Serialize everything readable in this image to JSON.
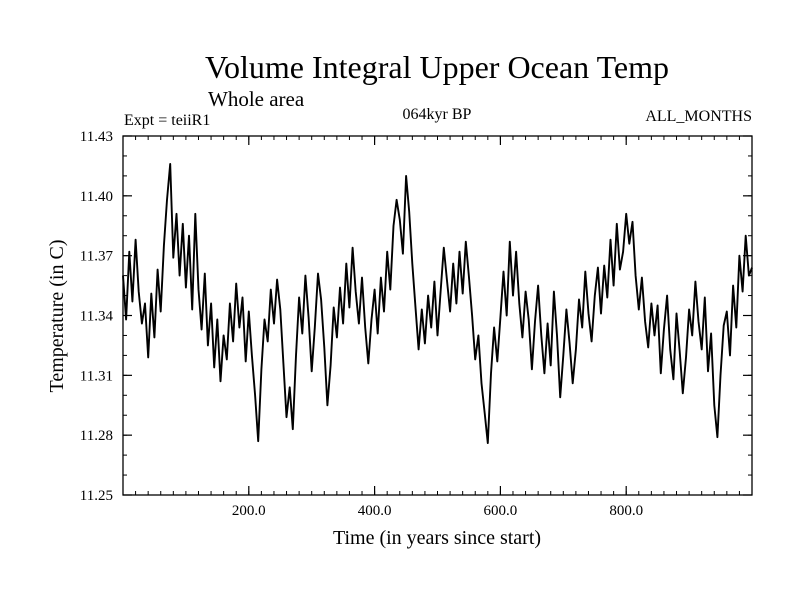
{
  "chart_data": {
    "type": "line",
    "title": "Volume Integral Upper Ocean Temp",
    "subtitle": "Whole area",
    "experiment_label": "Expt = teiiR1",
    "period_label": "064kyr BP",
    "months_label": "ALL_MONTHS",
    "xlabel": "Time (in years since start)",
    "ylabel": "Temperature (in C)",
    "xlim": [
      0,
      1000
    ],
    "ylim": [
      11.25,
      11.43
    ],
    "x_ticks": [
      {
        "value": 200,
        "label": "200.0"
      },
      {
        "value": 400,
        "label": "400.0"
      },
      {
        "value": 600,
        "label": "600.0"
      },
      {
        "value": 800,
        "label": "800.0"
      }
    ],
    "y_ticks": [
      {
        "value": 11.25,
        "label": "11.25"
      },
      {
        "value": 11.28,
        "label": "11.28"
      },
      {
        "value": 11.31,
        "label": "11.31"
      },
      {
        "value": 11.34,
        "label": "11.34"
      },
      {
        "value": 11.37,
        "label": "11.37"
      },
      {
        "value": 11.4,
        "label": "11.40"
      },
      {
        "value": 11.43,
        "label": "11.43"
      }
    ],
    "grid": false,
    "line_color": "#000000",
    "series": [
      {
        "x": [
          0,
          5,
          10,
          15,
          20,
          25,
          30,
          35,
          40,
          45,
          50,
          55,
          60,
          65,
          70,
          75,
          80,
          85,
          90,
          95,
          100,
          105,
          110,
          115,
          120,
          125,
          130,
          135,
          140,
          145,
          150,
          155,
          160,
          165,
          170,
          175,
          180,
          185,
          190,
          195,
          200,
          205,
          210,
          215,
          220,
          225,
          230,
          235,
          240,
          245,
          250,
          255,
          260,
          265,
          270,
          275,
          280,
          285,
          290,
          295,
          300,
          305,
          310,
          315,
          320,
          325,
          330,
          335,
          340,
          345,
          350,
          355,
          360,
          365,
          370,
          375,
          380,
          385,
          390,
          395,
          400,
          405,
          410,
          415,
          420,
          425,
          430,
          435,
          440,
          445,
          450,
          455,
          460,
          465,
          470,
          475,
          480,
          485,
          490,
          495,
          500,
          505,
          510,
          515,
          520,
          525,
          530,
          535,
          540,
          545,
          550,
          555,
          560,
          565,
          570,
          575,
          580,
          585,
          590,
          595,
          600,
          605,
          610,
          615,
          620,
          625,
          630,
          635,
          640,
          645,
          650,
          655,
          660,
          665,
          670,
          675,
          680,
          685,
          690,
          695,
          700,
          705,
          710,
          715,
          720,
          725,
          730,
          735,
          740,
          745,
          750,
          755,
          760,
          765,
          770,
          775,
          780,
          785,
          790,
          795,
          800,
          805,
          810,
          815,
          820,
          825,
          830,
          835,
          840,
          845,
          850,
          855,
          860,
          865,
          870,
          875,
          880,
          885,
          890,
          895,
          900,
          905,
          910,
          915,
          920,
          925,
          930,
          935,
          940,
          945,
          950,
          955,
          960,
          965,
          970,
          975,
          980,
          985,
          990,
          995,
          1000
        ],
        "values": [
          11.36,
          11.338,
          11.372,
          11.347,
          11.378,
          11.352,
          11.336,
          11.346,
          11.319,
          11.351,
          11.329,
          11.363,
          11.342,
          11.375,
          11.398,
          11.416,
          11.369,
          11.391,
          11.36,
          11.386,
          11.354,
          11.38,
          11.343,
          11.391,
          11.353,
          11.333,
          11.361,
          11.325,
          11.346,
          11.314,
          11.338,
          11.307,
          11.33,
          11.318,
          11.346,
          11.327,
          11.356,
          11.334,
          11.349,
          11.317,
          11.342,
          11.32,
          11.3,
          11.277,
          11.313,
          11.338,
          11.327,
          11.353,
          11.336,
          11.358,
          11.343,
          11.316,
          11.289,
          11.304,
          11.283,
          11.32,
          11.349,
          11.331,
          11.36,
          11.339,
          11.312,
          11.334,
          11.361,
          11.348,
          11.324,
          11.295,
          11.315,
          11.344,
          11.329,
          11.354,
          11.336,
          11.366,
          11.344,
          11.374,
          11.352,
          11.336,
          11.359,
          11.334,
          11.316,
          11.338,
          11.353,
          11.331,
          11.359,
          11.342,
          11.372,
          11.353,
          11.385,
          11.398,
          11.388,
          11.371,
          11.41,
          11.392,
          11.366,
          11.344,
          11.323,
          11.343,
          11.326,
          11.35,
          11.334,
          11.357,
          11.33,
          11.352,
          11.374,
          11.358,
          11.342,
          11.366,
          11.346,
          11.372,
          11.351,
          11.377,
          11.359,
          11.34,
          11.318,
          11.33,
          11.306,
          11.291,
          11.276,
          11.311,
          11.334,
          11.317,
          11.339,
          11.362,
          11.34,
          11.377,
          11.35,
          11.372,
          11.346,
          11.329,
          11.352,
          11.338,
          11.313,
          11.337,
          11.355,
          11.33,
          11.311,
          11.336,
          11.315,
          11.352,
          11.33,
          11.299,
          11.32,
          11.343,
          11.326,
          11.306,
          11.323,
          11.348,
          11.334,
          11.362,
          11.341,
          11.327,
          11.35,
          11.364,
          11.341,
          11.365,
          11.349,
          11.378,
          11.355,
          11.386,
          11.363,
          11.372,
          11.391,
          11.376,
          11.387,
          11.36,
          11.343,
          11.359,
          11.337,
          11.324,
          11.346,
          11.33,
          11.345,
          11.311,
          11.333,
          11.35,
          11.323,
          11.308,
          11.341,
          11.322,
          11.301,
          11.319,
          11.343,
          11.33,
          11.357,
          11.337,
          11.323,
          11.349,
          11.312,
          11.331,
          11.295,
          11.279,
          11.31,
          11.335,
          11.342,
          11.32,
          11.355,
          11.334,
          11.37,
          11.352,
          11.38,
          11.36,
          11.364
        ]
      }
    ]
  }
}
